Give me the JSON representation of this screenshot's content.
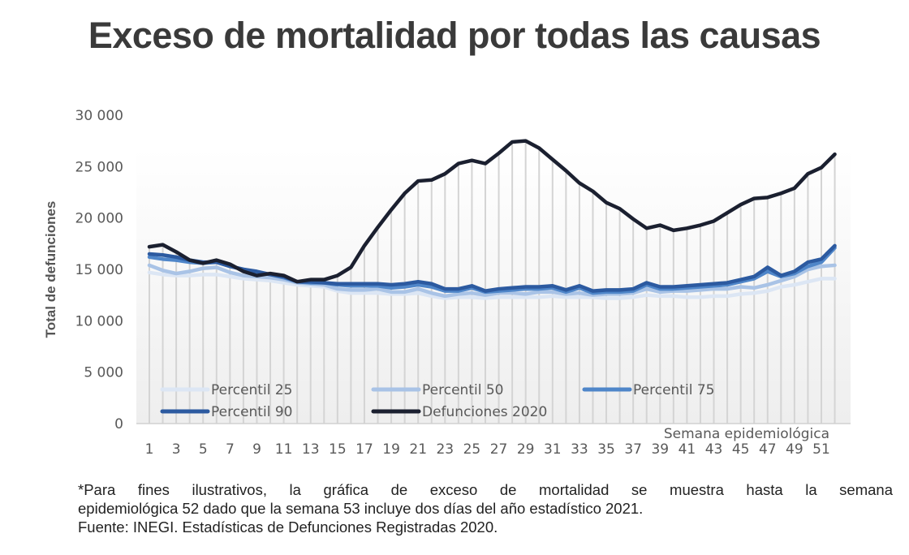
{
  "chart_data": {
    "type": "line",
    "title": "Exceso de mortalidad por todas las causas",
    "xlabel": "Semana epidemiológica",
    "ylabel": "Total de defunciones",
    "ylim": [
      0,
      30000
    ],
    "yticks": [
      0,
      5000,
      10000,
      15000,
      20000,
      25000,
      30000
    ],
    "ytick_labels": [
      "0",
      "5 000",
      "10 000",
      "15 000",
      "20 000",
      "25 000",
      "30 000"
    ],
    "x": [
      1,
      2,
      3,
      4,
      5,
      6,
      7,
      8,
      9,
      10,
      11,
      12,
      13,
      14,
      15,
      16,
      17,
      18,
      19,
      20,
      21,
      22,
      23,
      24,
      25,
      26,
      27,
      28,
      29,
      30,
      31,
      32,
      33,
      34,
      35,
      36,
      37,
      38,
      39,
      40,
      41,
      42,
      43,
      44,
      45,
      46,
      47,
      48,
      49,
      50,
      51,
      52
    ],
    "xtick_labels": [
      "1",
      "3",
      "5",
      "7",
      "9",
      "11",
      "13",
      "15",
      "17",
      "19",
      "21",
      "23",
      "25",
      "27",
      "29",
      "31",
      "33",
      "35",
      "37",
      "39",
      "41",
      "43",
      "45",
      "47",
      "49",
      "51"
    ],
    "grid": "vertical drop lines at each week",
    "legend_position": "bottom-inside",
    "series": [
      {
        "name": "Percentil 25",
        "color": "#dce6f4",
        "values": [
          14700,
          14500,
          14400,
          14400,
          14500,
          14500,
          14300,
          14100,
          14000,
          13900,
          13700,
          13500,
          13400,
          13300,
          12900,
          12700,
          12700,
          12700,
          12600,
          12600,
          12700,
          12400,
          12200,
          12300,
          12300,
          12200,
          12300,
          12300,
          12300,
          12300,
          12400,
          12300,
          12300,
          12300,
          12200,
          12200,
          12300,
          12500,
          12400,
          12400,
          12300,
          12300,
          12400,
          12400,
          12600,
          12700,
          12900,
          13300,
          13500,
          13800,
          14100,
          14100
        ]
      },
      {
        "name": "Percentil 50",
        "color": "#a9c3e6",
        "values": [
          15400,
          14900,
          14600,
          14800,
          15100,
          15200,
          14700,
          14400,
          14300,
          14200,
          14000,
          13700,
          13600,
          13500,
          13100,
          13000,
          13000,
          13100,
          12800,
          12800,
          13100,
          12700,
          12400,
          12600,
          12700,
          12500,
          12700,
          12700,
          12600,
          12800,
          12800,
          12600,
          12700,
          12500,
          12600,
          12600,
          12700,
          13100,
          12800,
          12900,
          12900,
          13000,
          13100,
          13100,
          13300,
          13200,
          13500,
          13900,
          14300,
          15000,
          15300,
          15400
        ]
      },
      {
        "name": "Percentil 75",
        "color": "#4f86c9",
        "values": [
          16200,
          16000,
          15900,
          15700,
          15600,
          15700,
          15300,
          15000,
          14700,
          14500,
          14200,
          13800,
          13700,
          13700,
          13500,
          13400,
          13400,
          13400,
          13200,
          13300,
          13500,
          13300,
          12900,
          12900,
          13200,
          12800,
          12900,
          13000,
          13100,
          13100,
          13200,
          12800,
          13200,
          12700,
          12800,
          12800,
          12900,
          13500,
          13100,
          13100,
          13200,
          13300,
          13400,
          13500,
          13800,
          14100,
          14800,
          14300,
          14600,
          15300,
          15700,
          17100
        ]
      },
      {
        "name": "Percentil 90",
        "color": "#2c5aa0",
        "values": [
          16500,
          16400,
          16200,
          15900,
          15700,
          15700,
          15300,
          15000,
          14800,
          14500,
          14300,
          13800,
          13800,
          13700,
          13600,
          13600,
          13600,
          13600,
          13500,
          13600,
          13800,
          13600,
          13100,
          13100,
          13400,
          12900,
          13100,
          13200,
          13300,
          13300,
          13400,
          13000,
          13400,
          12900,
          13000,
          13000,
          13100,
          13700,
          13300,
          13300,
          13400,
          13500,
          13600,
          13700,
          14000,
          14300,
          15200,
          14400,
          14800,
          15700,
          16000,
          17300
        ]
      },
      {
        "name": "Defunciones 2020",
        "color": "#1b2030",
        "values": [
          17200,
          17400,
          16700,
          15900,
          15600,
          15900,
          15500,
          14800,
          14400,
          14600,
          14400,
          13800,
          14000,
          14000,
          14400,
          15200,
          17300,
          19100,
          20800,
          22400,
          23600,
          23700,
          24300,
          25300,
          25600,
          25300,
          26300,
          27400,
          27500,
          26800,
          25700,
          24600,
          23400,
          22600,
          21500,
          20900,
          19900,
          19000,
          19300,
          18800,
          19000,
          19300,
          19700,
          20500,
          21300,
          21900,
          22000,
          22400,
          22900,
          24300,
          24900,
          26200
        ]
      }
    ]
  },
  "footnote": {
    "line1": "*Para fines ilustrativos, la gráfica de exceso de mortalidad se muestra hasta la semana",
    "line2": "epidemiológica 52 dado que la semana 53 incluye dos días del año estadístico 2021.",
    "source": "Fuente: INEGI. Estadísticas de Defunciones Registradas 2020."
  }
}
